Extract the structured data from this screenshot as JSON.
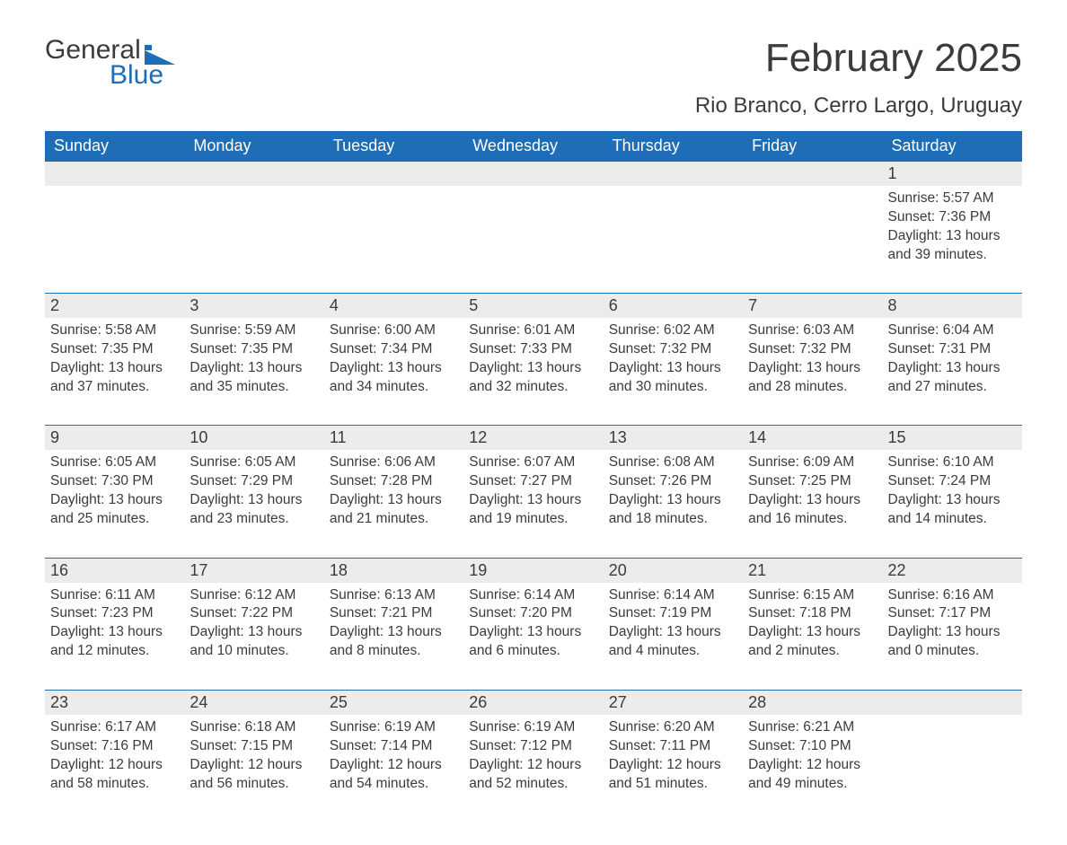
{
  "logo": {
    "word1": "General",
    "word2": "Blue",
    "word2_color": "#1e6db6"
  },
  "title": "February 2025",
  "location": "Rio Branco, Cerro Largo, Uruguay",
  "colors": {
    "header_bg": "#1e6db6",
    "header_text": "#ffffff",
    "daynum_bg": "#ececec",
    "body_text": "#3b3b3b",
    "page_bg": "#ffffff"
  },
  "typography": {
    "title_fontsize": 44,
    "location_fontsize": 24,
    "weekday_fontsize": 18,
    "cell_fontsize": 15.5
  },
  "columns": [
    "Sunday",
    "Monday",
    "Tuesday",
    "Wednesday",
    "Thursday",
    "Friday",
    "Saturday"
  ],
  "weeks": [
    {
      "nums": [
        "",
        "",
        "",
        "",
        "",
        "",
        "1"
      ],
      "cells": [
        "",
        "",
        "",
        "",
        "",
        "",
        "Sunrise: 5:57 AM\nSunset: 7:36 PM\nDaylight: 13 hours and 39 minutes."
      ]
    },
    {
      "nums": [
        "2",
        "3",
        "4",
        "5",
        "6",
        "7",
        "8"
      ],
      "cells": [
        "Sunrise: 5:58 AM\nSunset: 7:35 PM\nDaylight: 13 hours and 37 minutes.",
        "Sunrise: 5:59 AM\nSunset: 7:35 PM\nDaylight: 13 hours and 35 minutes.",
        "Sunrise: 6:00 AM\nSunset: 7:34 PM\nDaylight: 13 hours and 34 minutes.",
        "Sunrise: 6:01 AM\nSunset: 7:33 PM\nDaylight: 13 hours and 32 minutes.",
        "Sunrise: 6:02 AM\nSunset: 7:32 PM\nDaylight: 13 hours and 30 minutes.",
        "Sunrise: 6:03 AM\nSunset: 7:32 PM\nDaylight: 13 hours and 28 minutes.",
        "Sunrise: 6:04 AM\nSunset: 7:31 PM\nDaylight: 13 hours and 27 minutes."
      ]
    },
    {
      "nums": [
        "9",
        "10",
        "11",
        "12",
        "13",
        "14",
        "15"
      ],
      "cells": [
        "Sunrise: 6:05 AM\nSunset: 7:30 PM\nDaylight: 13 hours and 25 minutes.",
        "Sunrise: 6:05 AM\nSunset: 7:29 PM\nDaylight: 13 hours and 23 minutes.",
        "Sunrise: 6:06 AM\nSunset: 7:28 PM\nDaylight: 13 hours and 21 minutes.",
        "Sunrise: 6:07 AM\nSunset: 7:27 PM\nDaylight: 13 hours and 19 minutes.",
        "Sunrise: 6:08 AM\nSunset: 7:26 PM\nDaylight: 13 hours and 18 minutes.",
        "Sunrise: 6:09 AM\nSunset: 7:25 PM\nDaylight: 13 hours and 16 minutes.",
        "Sunrise: 6:10 AM\nSunset: 7:24 PM\nDaylight: 13 hours and 14 minutes."
      ]
    },
    {
      "nums": [
        "16",
        "17",
        "18",
        "19",
        "20",
        "21",
        "22"
      ],
      "cells": [
        "Sunrise: 6:11 AM\nSunset: 7:23 PM\nDaylight: 13 hours and 12 minutes.",
        "Sunrise: 6:12 AM\nSunset: 7:22 PM\nDaylight: 13 hours and 10 minutes.",
        "Sunrise: 6:13 AM\nSunset: 7:21 PM\nDaylight: 13 hours and 8 minutes.",
        "Sunrise: 6:14 AM\nSunset: 7:20 PM\nDaylight: 13 hours and 6 minutes.",
        "Sunrise: 6:14 AM\nSunset: 7:19 PM\nDaylight: 13 hours and 4 minutes.",
        "Sunrise: 6:15 AM\nSunset: 7:18 PM\nDaylight: 13 hours and 2 minutes.",
        "Sunrise: 6:16 AM\nSunset: 7:17 PM\nDaylight: 13 hours and 0 minutes."
      ]
    },
    {
      "nums": [
        "23",
        "24",
        "25",
        "26",
        "27",
        "28",
        ""
      ],
      "cells": [
        "Sunrise: 6:17 AM\nSunset: 7:16 PM\nDaylight: 12 hours and 58 minutes.",
        "Sunrise: 6:18 AM\nSunset: 7:15 PM\nDaylight: 12 hours and 56 minutes.",
        "Sunrise: 6:19 AM\nSunset: 7:14 PM\nDaylight: 12 hours and 54 minutes.",
        "Sunrise: 6:19 AM\nSunset: 7:12 PM\nDaylight: 12 hours and 52 minutes.",
        "Sunrise: 6:20 AM\nSunset: 7:11 PM\nDaylight: 12 hours and 51 minutes.",
        "Sunrise: 6:21 AM\nSunset: 7:10 PM\nDaylight: 12 hours and 49 minutes.",
        ""
      ]
    }
  ]
}
